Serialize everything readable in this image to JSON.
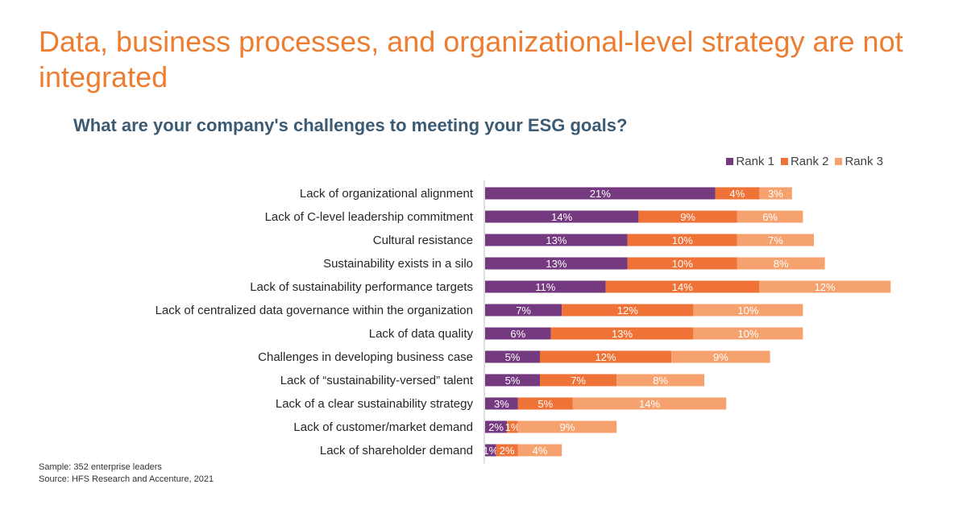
{
  "header": {
    "title": "Data, business processes, and organizational-level strategy are not integrated",
    "subtitle": "What are your company's challenges to meeting your ESG goals?"
  },
  "colors": {
    "title": "#ED7D31",
    "subtitle": "#3B5A73",
    "rank1": "#74397E",
    "rank2": "#EF7236",
    "rank3": "#F5A26E"
  },
  "footer": {
    "sample": "Sample: 352 enterprise leaders",
    "source": "Source: HFS Research and Accenture, 2021"
  },
  "chart_data": {
    "type": "bar",
    "orientation": "horizontal",
    "stacked": true,
    "categories": [
      "Lack of organizational alignment",
      "Lack of C-level leadership commitment",
      "Cultural resistance",
      "Sustainability exists in a silo",
      "Lack of sustainability performance targets",
      "Lack of centralized data governance within the organization",
      "Lack of data quality",
      "Challenges in developing business case",
      "Lack of “sustainability-versed” talent",
      "Lack of a clear sustainability strategy",
      "Lack of customer/market demand",
      "Lack of shareholder demand"
    ],
    "series": [
      {
        "name": "Rank 1",
        "values": [
          21,
          14,
          13,
          13,
          11,
          7,
          6,
          5,
          5,
          3,
          2,
          1
        ]
      },
      {
        "name": "Rank 2",
        "values": [
          4,
          9,
          10,
          10,
          14,
          12,
          13,
          12,
          7,
          5,
          1,
          2
        ]
      },
      {
        "name": "Rank 3",
        "values": [
          3,
          6,
          7,
          8,
          12,
          10,
          10,
          9,
          8,
          14,
          9,
          4
        ]
      }
    ],
    "value_suffix": "%",
    "legend_position": "top-right",
    "grid": false
  }
}
